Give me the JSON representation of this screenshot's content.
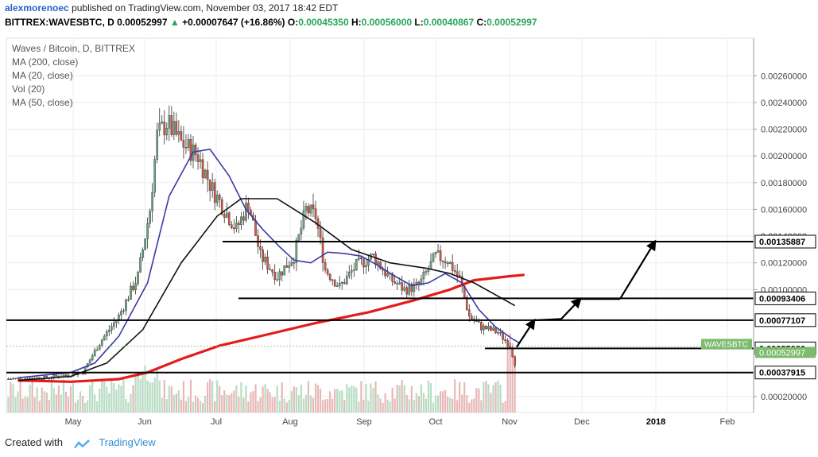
{
  "header": {
    "author": "alexmorenoec",
    "published": "published on TradingView.com, November 03, 2017 18:42 EDT",
    "symbol_line": "BITTREX:WAVESBTC, D",
    "last": "0.00052997",
    "change": "+0.00007647 (+16.86%)",
    "o_label": "O:",
    "o": "0.00045350",
    "h_label": "H:",
    "h": "0.00056000",
    "l_label": "L:",
    "l": "0.00040867",
    "c_label": "C:",
    "c": "0.00052997"
  },
  "legend": [
    "Waves / Bitcoin, D, BITTREX",
    "MA (200, close)",
    "MA (20, close)",
    "Vol (20)",
    "MA (50, close)"
  ],
  "footer": {
    "created_with": "Created with",
    "brand": "TradingView"
  },
  "colors": {
    "up": "#26a65b",
    "candle_up": "#6ba583",
    "candle_down": "#d75442",
    "candle_border": "#333333",
    "ma200": "#e61a1a",
    "ma20": "#3a3aa8",
    "ma50": "#111111",
    "vol_up": "#b8dcc4",
    "vol_down": "#e8b8b8",
    "price_tag": "#7dbb6e"
  },
  "chart_data": {
    "type": "candlestick",
    "symbol": "WAVESBTC",
    "x_ticks": [
      "May",
      "Jun",
      "Jul",
      "Aug",
      "Sep",
      "Oct",
      "Nov",
      "Dec",
      "2018",
      "Feb"
    ],
    "y_ticks": [
      "0.00020000",
      "0.00100000",
      "0.00120000",
      "0.00140000",
      "0.00160000",
      "0.00180000",
      "0.00200000",
      "0.00220000",
      "0.00240000",
      "0.00260000"
    ],
    "ylim": [
      8e-05,
      0.00284
    ],
    "price_tag": "WAVESBTC",
    "support_resistance": [
      {
        "label": "0.00135887",
        "value": 0.00135887
      },
      {
        "label": "0.00093406",
        "value": 0.00093406
      },
      {
        "label": "0.00077107",
        "value": 0.00077107
      },
      {
        "label": "0.00055980",
        "value": 0.0005598
      },
      {
        "label": "0.00037915",
        "value": 0.00037915
      }
    ],
    "current_price": {
      "label": "0.00052997",
      "value": 0.00052997
    },
    "series": [
      {
        "name": "MA (200, close)",
        "points": [
          [
            "Apr 08",
            0.00032
          ],
          [
            "Apr 30",
            0.00031
          ],
          [
            "May 20",
            0.00033
          ],
          [
            "Jun 01",
            0.00038
          ],
          [
            "Jun 15",
            0.00048
          ],
          [
            "Jul 01",
            0.00058
          ],
          [
            "Jul 20",
            0.00066
          ],
          [
            "Aug 10",
            0.00075
          ],
          [
            "Sep 01",
            0.00083
          ],
          [
            "Sep 20",
            0.00092
          ],
          [
            "Oct 05",
            0.001
          ],
          [
            "Oct 15",
            0.00107
          ],
          [
            "Oct 30",
            0.0011
          ],
          [
            "Nov 05",
            0.00111
          ]
        ]
      },
      {
        "name": "MA (20, close)",
        "points": [
          [
            "Apr 08",
            0.00034
          ],
          [
            "Apr 30",
            0.00038
          ],
          [
            "May 10",
            0.00045
          ],
          [
            "May 20",
            0.00065
          ],
          [
            "Jun 01",
            0.00105
          ],
          [
            "Jun 10",
            0.0017
          ],
          [
            "Jun 20",
            0.00203
          ],
          [
            "Jun 27",
            0.00205
          ],
          [
            "Jul 05",
            0.00185
          ],
          [
            "Jul 12",
            0.0016
          ],
          [
            "Jul 19",
            0.00145
          ],
          [
            "Jul 26",
            0.00132
          ],
          [
            "Aug 01",
            0.00122
          ],
          [
            "Aug 08",
            0.0012
          ],
          [
            "Aug 15",
            0.00128
          ],
          [
            "Aug 22",
            0.00127
          ],
          [
            "Aug 29",
            0.00125
          ],
          [
            "Sep 05",
            0.00118
          ],
          [
            "Sep 12",
            0.0011
          ],
          [
            "Sep 19",
            0.00103
          ],
          [
            "Sep 26",
            0.00105
          ],
          [
            "Oct 03",
            0.00112
          ],
          [
            "Oct 10",
            0.00105
          ],
          [
            "Oct 17",
            0.00085
          ],
          [
            "Oct 24",
            0.00072
          ],
          [
            "Oct 31",
            0.00063
          ],
          [
            "Nov 03",
            0.0006
          ]
        ]
      },
      {
        "name": "MA (50, close)",
        "points": [
          [
            "Apr 08",
            0.00032
          ],
          [
            "Apr 30",
            0.00035
          ],
          [
            "May 15",
            0.00045
          ],
          [
            "May 30",
            0.0007
          ],
          [
            "Jun 15",
            0.0012
          ],
          [
            "Jun 30",
            0.00155
          ],
          [
            "Jul 10",
            0.00168
          ],
          [
            "Jul 25",
            0.00168
          ],
          [
            "Aug 10",
            0.0015
          ],
          [
            "Aug 25",
            0.0013
          ],
          [
            "Sep 10",
            0.0012
          ],
          [
            "Sep 25",
            0.00116
          ],
          [
            "Oct 05",
            0.00112
          ],
          [
            "Oct 15",
            0.00105
          ],
          [
            "Oct 25",
            0.00095
          ],
          [
            "Nov 01",
            0.00088
          ]
        ]
      }
    ],
    "annotations": [
      "up-arrow-1",
      "up-arrow-2",
      "up-arrow-3",
      "up-arrow-4"
    ]
  }
}
